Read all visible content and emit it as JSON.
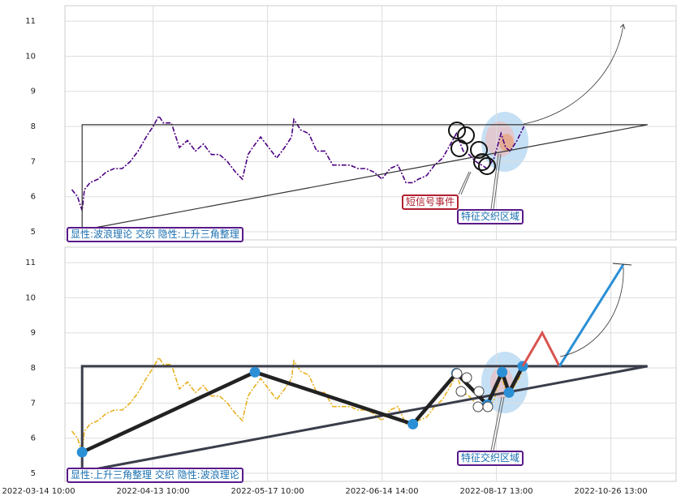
{
  "chart_data": [
    {
      "type": "line",
      "xlim": [
        23,
        557
      ],
      "ylim": [
        4.77,
        11.44
      ],
      "yticks": [
        5,
        6,
        7,
        8,
        9,
        10,
        11
      ],
      "grid": true,
      "x": [
        29,
        34,
        38,
        40,
        45,
        52,
        59,
        66,
        73,
        80,
        87,
        94,
        100,
        105,
        109,
        116,
        123,
        130,
        137,
        144,
        151,
        158,
        165,
        172,
        178,
        183,
        187,
        194,
        201,
        208,
        215,
        221,
        223,
        229,
        236,
        243,
        250,
        257,
        265,
        272,
        279,
        286,
        293,
        300,
        307,
        314,
        321,
        327,
        332,
        339,
        346,
        353,
        360,
        365,
        371,
        376,
        382,
        387,
        392,
        398,
        404,
        408,
        412,
        418,
        424
      ],
      "series": [
        {
          "color": "#4b0082",
          "dash": "6 2 2 2",
          "values": [
            6.2,
            6.0,
            5.6,
            6.2,
            6.4,
            6.5,
            6.7,
            6.8,
            6.8,
            7.0,
            7.3,
            7.7,
            8.0,
            8.3,
            8.1,
            8.1,
            7.4,
            7.6,
            7.3,
            7.5,
            7.2,
            7.2,
            7.0,
            6.7,
            6.5,
            7.2,
            7.4,
            7.7,
            7.4,
            7.1,
            7.4,
            7.7,
            8.2,
            7.9,
            7.8,
            7.3,
            7.3,
            6.9,
            6.9,
            6.9,
            6.8,
            6.8,
            6.7,
            6.5,
            6.8,
            6.9,
            6.4,
            6.4,
            6.5,
            6.6,
            6.9,
            7.1,
            7.5,
            7.8,
            7.3,
            7.2,
            7.0,
            6.9,
            6.8,
            7.1,
            7.8,
            7.4,
            7.3,
            7.6,
            8.0
          ]
        }
      ],
      "lines": [
        {
          "color": "#333333",
          "width": 1.2,
          "x": [
            38,
            38,
            532
          ],
          "values": [
            5.05,
            8.05,
            8.05
          ]
        },
        {
          "color": "#333333",
          "width": 1.2,
          "x": [
            38,
            532
          ],
          "values": [
            5.05,
            8.05
          ]
        }
      ],
      "annotations": [
        "短信号事件",
        "特征交织区域",
        "显性:波浪理论 交织 隐性:上升三角整理"
      ]
    },
    {
      "type": "line",
      "xlim": [
        23,
        557
      ],
      "ylim": [
        4.77,
        11.44
      ],
      "yticks": [
        5,
        6,
        7,
        8,
        9,
        10,
        11
      ],
      "grid": true,
      "xticks": [
        {
          "value": 0,
          "label": "2022-03-14 10:00"
        },
        {
          "value": 100,
          "label": "2022-04-13 10:00"
        },
        {
          "value": 200,
          "label": "2022-05-17 10:00"
        },
        {
          "value": 300,
          "label": "2022-06-14 14:00"
        },
        {
          "value": 400,
          "label": "2022-08-17 13:00"
        },
        {
          "value": 500,
          "label": "2022-10-26 13:00"
        }
      ],
      "x": [
        29,
        34,
        38,
        40,
        45,
        52,
        59,
        66,
        73,
        80,
        87,
        94,
        100,
        105,
        109,
        116,
        123,
        130,
        137,
        144,
        151,
        158,
        165,
        172,
        178,
        183,
        187,
        194,
        201,
        208,
        215,
        221,
        223,
        229,
        236,
        243,
        250,
        257,
        265,
        272,
        279,
        286,
        293,
        300,
        307,
        314,
        321,
        327,
        332,
        339,
        346,
        353,
        360,
        365,
        371,
        376,
        382,
        387,
        392,
        398,
        404,
        408,
        412,
        418,
        424
      ],
      "series": [
        {
          "color": "#e8b020",
          "dash": "6 2 2 2",
          "values": [
            6.2,
            6.0,
            5.6,
            6.2,
            6.4,
            6.5,
            6.7,
            6.8,
            6.8,
            7.0,
            7.3,
            7.7,
            8.0,
            8.3,
            8.1,
            8.1,
            7.4,
            7.6,
            7.3,
            7.5,
            7.2,
            7.2,
            7.0,
            6.7,
            6.5,
            7.2,
            7.4,
            7.7,
            7.4,
            7.1,
            7.4,
            7.7,
            8.2,
            7.9,
            7.8,
            7.3,
            7.3,
            6.9,
            6.9,
            6.9,
            6.8,
            6.8,
            6.7,
            6.5,
            6.8,
            6.9,
            6.4,
            6.4,
            6.5,
            6.6,
            6.9,
            7.1,
            7.5,
            7.8,
            7.3,
            7.2,
            7.0,
            6.9,
            6.8,
            7.1,
            7.8,
            7.4,
            7.3,
            7.6,
            8.0
          ]
        }
      ],
      "lines": [
        {
          "color": "#3a3d4a",
          "width": 3,
          "x": [
            38,
            38,
            532
          ],
          "values": [
            5.05,
            8.05,
            8.05
          ]
        },
        {
          "color": "#3a3d4a",
          "width": 3,
          "x": [
            38,
            532
          ],
          "values": [
            5.05,
            8.05
          ]
        },
        {
          "color": "#222222",
          "width": 4.5,
          "markers": "#2b8fd6",
          "x": [
            38,
            189,
            327,
            365,
            392,
            405,
            411,
            423
          ],
          "values": [
            5.6,
            7.88,
            6.4,
            7.85,
            6.95,
            7.88,
            7.3,
            8.05
          ]
        },
        {
          "color": "#d9534f",
          "width": 3,
          "x": [
            423,
            440,
            455
          ],
          "values": [
            8.05,
            9.0,
            8.05
          ]
        },
        {
          "color": "#2b8fd6",
          "width": 3,
          "x": [
            455,
            511
          ],
          "values": [
            8.05,
            10.95
          ]
        }
      ],
      "annotations": [
        "特征交织区域",
        "显性:上升三角整理 交织 隐性:波浪理论"
      ]
    }
  ]
}
